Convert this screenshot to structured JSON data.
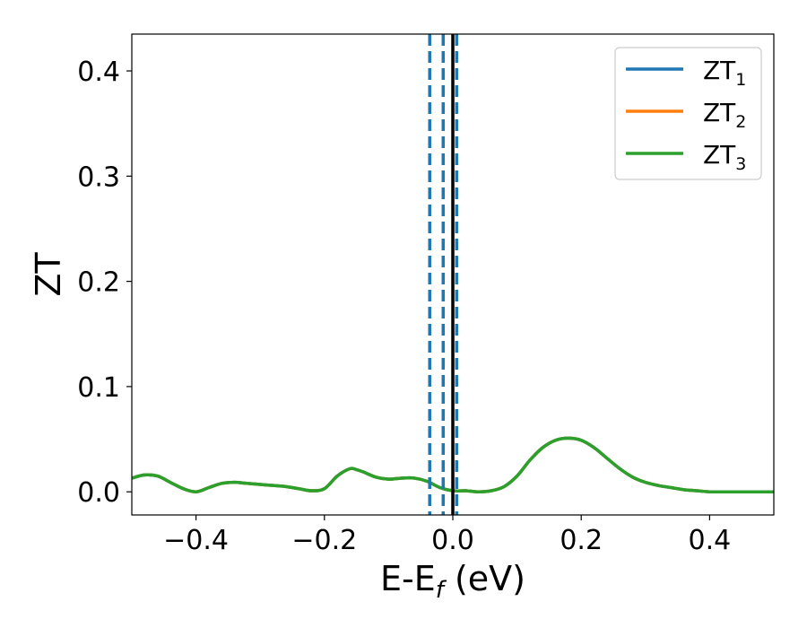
{
  "chart_data": {
    "type": "line",
    "xlabel": "E-E",
    "xlabel_sub": "f",
    "xlabel_unit": " (eV)",
    "ylabel": "ZT",
    "xlim": [
      -0.5,
      0.5
    ],
    "ylim": [
      -0.022,
      0.435
    ],
    "xticks": [
      -0.4,
      -0.2,
      0.0,
      0.2,
      0.4
    ],
    "xtick_labels": [
      "−0.4",
      "−0.2",
      "0.0",
      "0.2",
      "0.4"
    ],
    "yticks": [
      0.0,
      0.1,
      0.2,
      0.3,
      0.4
    ],
    "ytick_labels": [
      "0.0",
      "0.1",
      "0.2",
      "0.3",
      "0.4"
    ],
    "grid": false,
    "legend_position": "top-right",
    "x": [
      -0.5,
      -0.48,
      -0.46,
      -0.44,
      -0.42,
      -0.4,
      -0.38,
      -0.36,
      -0.34,
      -0.32,
      -0.3,
      -0.28,
      -0.26,
      -0.24,
      -0.22,
      -0.2,
      -0.18,
      -0.16,
      -0.15,
      -0.14,
      -0.12,
      -0.1,
      -0.08,
      -0.06,
      -0.04,
      -0.02,
      0.0,
      0.02,
      0.04,
      0.06,
      0.08,
      0.1,
      0.12,
      0.14,
      0.16,
      0.18,
      0.2,
      0.22,
      0.24,
      0.26,
      0.28,
      0.3,
      0.32,
      0.34,
      0.36,
      0.38,
      0.4,
      0.42,
      0.44,
      0.46,
      0.48,
      0.5
    ],
    "series": [
      {
        "name": "ZT",
        "sub": "1",
        "color": "#1f77b4",
        "values": [
          0.013,
          0.016,
          0.015,
          0.009,
          0.003,
          0.0,
          0.004,
          0.008,
          0.009,
          0.008,
          0.007,
          0.006,
          0.005,
          0.003,
          0.001,
          0.003,
          0.015,
          0.022,
          0.021,
          0.019,
          0.014,
          0.012,
          0.013,
          0.013,
          0.01,
          0.004,
          0.001,
          0.001,
          0.0,
          0.001,
          0.005,
          0.015,
          0.03,
          0.042,
          0.049,
          0.051,
          0.049,
          0.042,
          0.032,
          0.022,
          0.014,
          0.009,
          0.006,
          0.004,
          0.002,
          0.001,
          0.0,
          0.0,
          0.0,
          0.0,
          0.0,
          0.0
        ]
      },
      {
        "name": "ZT",
        "sub": "2",
        "color": "#ff7f0e",
        "values": [
          0.013,
          0.016,
          0.015,
          0.009,
          0.003,
          0.0,
          0.004,
          0.008,
          0.009,
          0.008,
          0.007,
          0.006,
          0.005,
          0.003,
          0.001,
          0.003,
          0.015,
          0.022,
          0.021,
          0.019,
          0.014,
          0.012,
          0.013,
          0.013,
          0.01,
          0.004,
          0.001,
          0.001,
          0.0,
          0.001,
          0.005,
          0.015,
          0.03,
          0.042,
          0.049,
          0.051,
          0.049,
          0.042,
          0.032,
          0.022,
          0.014,
          0.009,
          0.006,
          0.004,
          0.002,
          0.001,
          0.0,
          0.0,
          0.0,
          0.0,
          0.0,
          0.0
        ]
      },
      {
        "name": "ZT",
        "sub": "3",
        "color": "#2ca02c",
        "values": [
          0.013,
          0.016,
          0.015,
          0.009,
          0.003,
          0.0,
          0.004,
          0.008,
          0.009,
          0.008,
          0.007,
          0.006,
          0.005,
          0.003,
          0.001,
          0.003,
          0.015,
          0.022,
          0.021,
          0.019,
          0.014,
          0.012,
          0.013,
          0.013,
          0.01,
          0.004,
          0.001,
          0.001,
          0.0,
          0.001,
          0.005,
          0.015,
          0.03,
          0.042,
          0.049,
          0.051,
          0.049,
          0.042,
          0.032,
          0.022,
          0.014,
          0.009,
          0.006,
          0.004,
          0.002,
          0.001,
          0.0,
          0.0,
          0.0,
          0.0,
          0.0,
          0.0
        ]
      }
    ],
    "vlines": [
      {
        "x": -0.036,
        "style": "dashed",
        "color": "#1f77b4"
      },
      {
        "x": -0.015,
        "style": "dashed",
        "color": "#1f77b4"
      },
      {
        "x": 0.006,
        "style": "dashed",
        "color": "#1f77b4"
      },
      {
        "x": 0.0,
        "style": "solid",
        "color": "#000000"
      }
    ]
  }
}
